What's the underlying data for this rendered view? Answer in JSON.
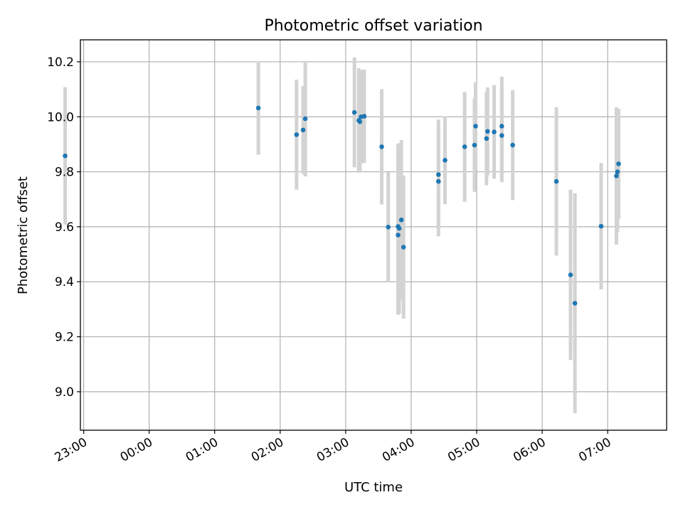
{
  "chart_data": {
    "type": "scatter",
    "title": "Photometric offset variation",
    "xlabel": "UTC time",
    "ylabel": "Photometric offset",
    "grid": true,
    "x_unit": "hours (UTC, relative to 00:00; negative = previous day)",
    "xlim": [
      -1.05,
      7.9
    ],
    "ylim": [
      8.86,
      10.28
    ],
    "x_ticks": [
      -0.9999,
      0,
      1,
      2,
      3,
      4,
      5,
      6,
      7
    ],
    "x_tick_labels": [
      "23:00",
      "00:00",
      "01:00",
      "02:00",
      "03:00",
      "04:00",
      "05:00",
      "06:00",
      "07:00"
    ],
    "y_ticks": [
      9.0,
      9.2,
      9.4,
      9.6,
      9.8,
      10.0,
      10.2
    ],
    "y_tick_labels": [
      "9.0",
      "9.2",
      "9.4",
      "9.6",
      "9.8",
      "10.0",
      "10.2"
    ],
    "colors": {
      "point": "#1f77b4",
      "errorbar": "#d3d3d3"
    },
    "series": [
      {
        "points": [
          {
            "x": "22:43",
            "y": 9.858,
            "err": 0.25
          },
          {
            "x": "01:40",
            "y": 10.032,
            "err": 0.17
          },
          {
            "x": "02:15",
            "y": 9.935,
            "err": 0.2
          },
          {
            "x": "02:21",
            "y": 9.952,
            "err": 0.16
          },
          {
            "x": "02:23",
            "y": 9.993,
            "err": 0.21
          },
          {
            "x": "03:08",
            "y": 10.016,
            "err": 0.2
          },
          {
            "x": "03:12",
            "y": 9.987,
            "err": 0.19
          },
          {
            "x": "03:14",
            "y": 10.0,
            "err": 0.17
          },
          {
            "x": "03:17",
            "y": 10.002,
            "err": 0.17
          },
          {
            "x": "03:13",
            "y": 9.982,
            "err": 0.18
          },
          {
            "x": "03:33",
            "y": 9.891,
            "err": 0.21
          },
          {
            "x": "03:39",
            "y": 9.599,
            "err": 0.2
          },
          {
            "x": "03:48",
            "y": 9.601,
            "err": 0.3
          },
          {
            "x": "03:48",
            "y": 9.57,
            "err": 0.29
          },
          {
            "x": "03:49",
            "y": 9.594,
            "err": 0.31
          },
          {
            "x": "03:51",
            "y": 9.625,
            "err": 0.29
          },
          {
            "x": "03:53",
            "y": 9.526,
            "err": 0.26
          },
          {
            "x": "04:25",
            "y": 9.79,
            "err": 0.2
          },
          {
            "x": "04:25",
            "y": 9.765,
            "err": 0.2
          },
          {
            "x": "04:31",
            "y": 9.842,
            "err": 0.16
          },
          {
            "x": "04:49",
            "y": 9.891,
            "err": 0.2
          },
          {
            "x": "04:58",
            "y": 9.897,
            "err": 0.17
          },
          {
            "x": "04:59",
            "y": 9.966,
            "err": 0.16
          },
          {
            "x": "05:09",
            "y": 9.921,
            "err": 0.17
          },
          {
            "x": "05:10",
            "y": 9.947,
            "err": 0.16
          },
          {
            "x": "05:16",
            "y": 9.945,
            "err": 0.17
          },
          {
            "x": "05:23",
            "y": 9.932,
            "err": 0.17
          },
          {
            "x": "05:23",
            "y": 9.966,
            "err": 0.18
          },
          {
            "x": "05:33",
            "y": 9.897,
            "err": 0.2
          },
          {
            "x": "06:13",
            "y": 9.765,
            "err": 0.27
          },
          {
            "x": "06:26",
            "y": 9.425,
            "err": 0.31
          },
          {
            "x": "06:30",
            "y": 9.322,
            "err": 0.4
          },
          {
            "x": "06:54",
            "y": 9.602,
            "err": 0.23
          },
          {
            "x": "07:08",
            "y": 9.785,
            "err": 0.25
          },
          {
            "x": "07:09",
            "y": 9.8,
            "err": 0.22
          },
          {
            "x": "07:10",
            "y": 9.829,
            "err": 0.2
          }
        ]
      }
    ]
  }
}
